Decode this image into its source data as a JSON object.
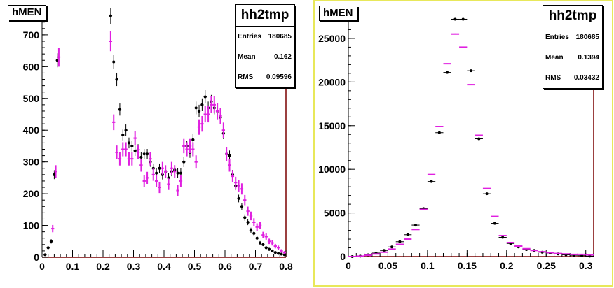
{
  "colors": {
    "accent": "#e020e0",
    "data": "#000000",
    "frame": "#7a0000",
    "pad_border": "#e8e85a"
  },
  "charts": [
    {
      "title_label": "hMEN",
      "stats": {
        "name": "hh2tmp",
        "entries_label": "Entries",
        "entries": "180685",
        "mean_label": "Mean",
        "mean": "0.162",
        "rms_label": "RMS",
        "rms": "0.09596"
      }
    },
    {
      "title_label": "hMEN",
      "stats": {
        "name": "hh2tmp",
        "entries_label": "Entries",
        "entries": "180685",
        "mean_label": "Mean",
        "mean": "0.1394",
        "rms_label": "RMS",
        "rms": "0.03432"
      }
    }
  ],
  "chart_data": [
    {
      "type": "scatter",
      "xlim": [
        0,
        0.8
      ],
      "ylim": [
        0,
        790
      ],
      "xticks": [
        "0",
        "0.1",
        "0.2",
        "0.3",
        "0.4",
        "0.5",
        "0.6",
        "0.7",
        "0.8"
      ],
      "yticks": [
        "0",
        "100",
        "200",
        "300",
        "400",
        "500",
        "600",
        "700"
      ],
      "series": [
        {
          "color": "#000000",
          "marker": "dot",
          "x": [
            0.01,
            0.02,
            0.03,
            0.04,
            0.05,
            0.225,
            0.235,
            0.245,
            0.255,
            0.265,
            0.275,
            0.285,
            0.295,
            0.305,
            0.315,
            0.325,
            0.335,
            0.345,
            0.355,
            0.365,
            0.375,
            0.385,
            0.395,
            0.405,
            0.415,
            0.425,
            0.435,
            0.445,
            0.455,
            0.465,
            0.475,
            0.485,
            0.495,
            0.505,
            0.515,
            0.525,
            0.535,
            0.545,
            0.555,
            0.565,
            0.575,
            0.585,
            0.595,
            0.605,
            0.615,
            0.625,
            0.635,
            0.645,
            0.655,
            0.665,
            0.675,
            0.685,
            0.695,
            0.705,
            0.715,
            0.725,
            0.735,
            0.745,
            0.755,
            0.765,
            0.775,
            0.785,
            0.795
          ],
          "y": [
            8,
            30,
            50,
            260,
            620,
            760,
            615,
            560,
            465,
            385,
            400,
            360,
            350,
            335,
            340,
            315,
            325,
            325,
            300,
            280,
            265,
            280,
            260,
            270,
            250,
            270,
            275,
            265,
            265,
            300,
            350,
            330,
            370,
            470,
            460,
            480,
            505,
            470,
            490,
            470,
            460,
            440,
            390,
            325,
            320,
            260,
            225,
            185,
            160,
            125,
            110,
            85,
            75,
            60,
            45,
            40,
            30,
            25,
            20,
            15,
            12,
            10,
            8
          ],
          "yerr": [
            3,
            5,
            7,
            14,
            22,
            25,
            22,
            21,
            19,
            17,
            18,
            17,
            17,
            16,
            16,
            16,
            16,
            16,
            15,
            15,
            15,
            15,
            15,
            15,
            14,
            15,
            15,
            15,
            15,
            16,
            17,
            17,
            18,
            20,
            20,
            20,
            21,
            20,
            21,
            20,
            20,
            19,
            18,
            17,
            16,
            15,
            14,
            12,
            11,
            10,
            9,
            8,
            8,
            7,
            6,
            5,
            5,
            5,
            4,
            3,
            3,
            3,
            3
          ]
        },
        {
          "color": "#e020e0",
          "marker": "cross",
          "x": [
            0.035,
            0.045,
            0.055,
            0.225,
            0.235,
            0.245,
            0.255,
            0.265,
            0.275,
            0.285,
            0.295,
            0.305,
            0.315,
            0.325,
            0.335,
            0.345,
            0.355,
            0.365,
            0.375,
            0.385,
            0.395,
            0.405,
            0.415,
            0.425,
            0.435,
            0.445,
            0.455,
            0.465,
            0.475,
            0.485,
            0.495,
            0.505,
            0.515,
            0.525,
            0.535,
            0.545,
            0.555,
            0.565,
            0.575,
            0.585,
            0.595,
            0.605,
            0.615,
            0.625,
            0.635,
            0.645,
            0.655,
            0.665,
            0.675,
            0.685,
            0.695,
            0.705,
            0.715,
            0.725,
            0.735,
            0.745,
            0.755,
            0.765,
            0.775,
            0.785,
            0.795
          ],
          "y": [
            90,
            270,
            630,
            680,
            425,
            330,
            310,
            340,
            340,
            310,
            310,
            375,
            330,
            290,
            240,
            250,
            310,
            260,
            240,
            220,
            280,
            270,
            230,
            280,
            270,
            210,
            240,
            350,
            340,
            350,
            340,
            300,
            410,
            420,
            450,
            450,
            480,
            480,
            460,
            445,
            400,
            325,
            290,
            255,
            235,
            225,
            215,
            180,
            145,
            130,
            110,
            95,
            100,
            70,
            65,
            50,
            45,
            35,
            30,
            20,
            15
          ]
        }
      ]
    },
    {
      "type": "scatter",
      "xlim": [
        0,
        0.31
      ],
      "ylim": [
        0,
        28600
      ],
      "xticks": [
        "0",
        "0.05",
        "0.1",
        "0.15",
        "0.2",
        "0.25",
        "0.3"
      ],
      "yticks": [
        "0",
        "5000",
        "10000",
        "15000",
        "20000",
        "25000"
      ],
      "series": [
        {
          "color": "#000000",
          "marker": "dot",
          "x": [
            0.005,
            0.015,
            0.025,
            0.035,
            0.045,
            0.055,
            0.065,
            0.075,
            0.085,
            0.095,
            0.105,
            0.115,
            0.125,
            0.135,
            0.145,
            0.155,
            0.165,
            0.175,
            0.185,
            0.195,
            0.205,
            0.215,
            0.225,
            0.235,
            0.245,
            0.255,
            0.265,
            0.275,
            0.285,
            0.295,
            0.305
          ],
          "y": [
            0,
            50,
            200,
            400,
            700,
            1100,
            1700,
            2500,
            3600,
            5500,
            8600,
            14200,
            21100,
            27200,
            27200,
            21300,
            13500,
            7200,
            3800,
            2200,
            1500,
            1100,
            800,
            700,
            500,
            400,
            300,
            200,
            150,
            100,
            50
          ]
        },
        {
          "color": "#e020e0",
          "marker": "cross",
          "x": [
            0.005,
            0.015,
            0.025,
            0.035,
            0.045,
            0.055,
            0.065,
            0.075,
            0.085,
            0.095,
            0.105,
            0.115,
            0.125,
            0.135,
            0.145,
            0.155,
            0.165,
            0.175,
            0.185,
            0.195,
            0.205,
            0.215,
            0.225,
            0.235,
            0.245,
            0.255,
            0.265,
            0.275,
            0.285,
            0.295,
            0.305
          ],
          "y": [
            0,
            50,
            150,
            300,
            500,
            850,
            1400,
            2000,
            3100,
            5400,
            9400,
            14900,
            22100,
            25500,
            24000,
            19700,
            13900,
            7800,
            4600,
            2400,
            1600,
            1200,
            900,
            700,
            550,
            450,
            350,
            300,
            250,
            250,
            200
          ]
        }
      ]
    }
  ]
}
